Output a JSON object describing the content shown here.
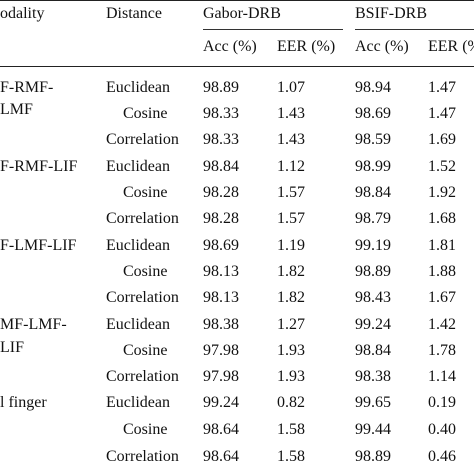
{
  "table": {
    "headers": {
      "modality": "odality",
      "distance": "Distance",
      "gabor": "Gabor-DRB",
      "bsif": "BSIF-DRB",
      "acc": "Acc (%)",
      "eer": "EER (%)",
      "acc2": "Acc (%)",
      "eer2": "EER (%"
    },
    "modality_labels": [
      {
        "line1": "F-RMF-",
        "line2": "LMF"
      },
      {
        "line1": "F-RMF-LIF",
        "line2": ""
      },
      {
        "line1": "F-LMF-LIF",
        "line2": ""
      },
      {
        "line1": "MF-LMF-",
        "line2": "LIF"
      },
      {
        "line1": "l finger",
        "line2": ""
      }
    ],
    "rows": [
      {
        "distance": "Euclidean",
        "gabor_acc": "98.89",
        "gabor_eer": "1.07",
        "bsif_acc": "98.94",
        "bsif_eer": "1.47"
      },
      {
        "distance": "Cosine",
        "gabor_acc": "98.33",
        "gabor_eer": "1.43",
        "bsif_acc": "98.69",
        "bsif_eer": "1.47"
      },
      {
        "distance": "Correlation",
        "gabor_acc": "98.33",
        "gabor_eer": "1.43",
        "bsif_acc": "98.59",
        "bsif_eer": "1.69"
      },
      {
        "distance": "Euclidean",
        "gabor_acc": "98.84",
        "gabor_eer": "1.12",
        "bsif_acc": "98.99",
        "bsif_eer": "1.52"
      },
      {
        "distance": "Cosine",
        "gabor_acc": "98.28",
        "gabor_eer": "1.57",
        "bsif_acc": "98.84",
        "bsif_eer": "1.92"
      },
      {
        "distance": "Correlation",
        "gabor_acc": "98.28",
        "gabor_eer": "1.57",
        "bsif_acc": "98.79",
        "bsif_eer": "1.68"
      },
      {
        "distance": "Euclidean",
        "gabor_acc": "98.69",
        "gabor_eer": "1.19",
        "bsif_acc": "99.19",
        "bsif_eer": "1.81"
      },
      {
        "distance": "Cosine",
        "gabor_acc": "98.13",
        "gabor_eer": "1.82",
        "bsif_acc": "98.89",
        "bsif_eer": "1.88"
      },
      {
        "distance": "Correlation",
        "gabor_acc": "98.13",
        "gabor_eer": "1.82",
        "bsif_acc": "98.43",
        "bsif_eer": "1.67"
      },
      {
        "distance": "Euclidean",
        "gabor_acc": "98.38",
        "gabor_eer": "1.27",
        "bsif_acc": "99.24",
        "bsif_eer": "1.42"
      },
      {
        "distance": "Cosine",
        "gabor_acc": "97.98",
        "gabor_eer": "1.93",
        "bsif_acc": "98.84",
        "bsif_eer": "1.78"
      },
      {
        "distance": "Correlation",
        "gabor_acc": "97.98",
        "gabor_eer": "1.93",
        "bsif_acc": "98.38",
        "bsif_eer": "1.14"
      },
      {
        "distance": "Euclidean",
        "gabor_acc": "99.24",
        "gabor_eer": "0.82",
        "bsif_acc": "99.65",
        "bsif_eer": "0.19"
      },
      {
        "distance": "Cosine",
        "gabor_acc": "98.64",
        "gabor_eer": "1.58",
        "bsif_acc": "99.44",
        "bsif_eer": "0.40"
      },
      {
        "distance": "Correlation",
        "gabor_acc": "98.64",
        "gabor_eer": "1.58",
        "bsif_acc": "98.89",
        "bsif_eer": "0.46"
      }
    ]
  }
}
